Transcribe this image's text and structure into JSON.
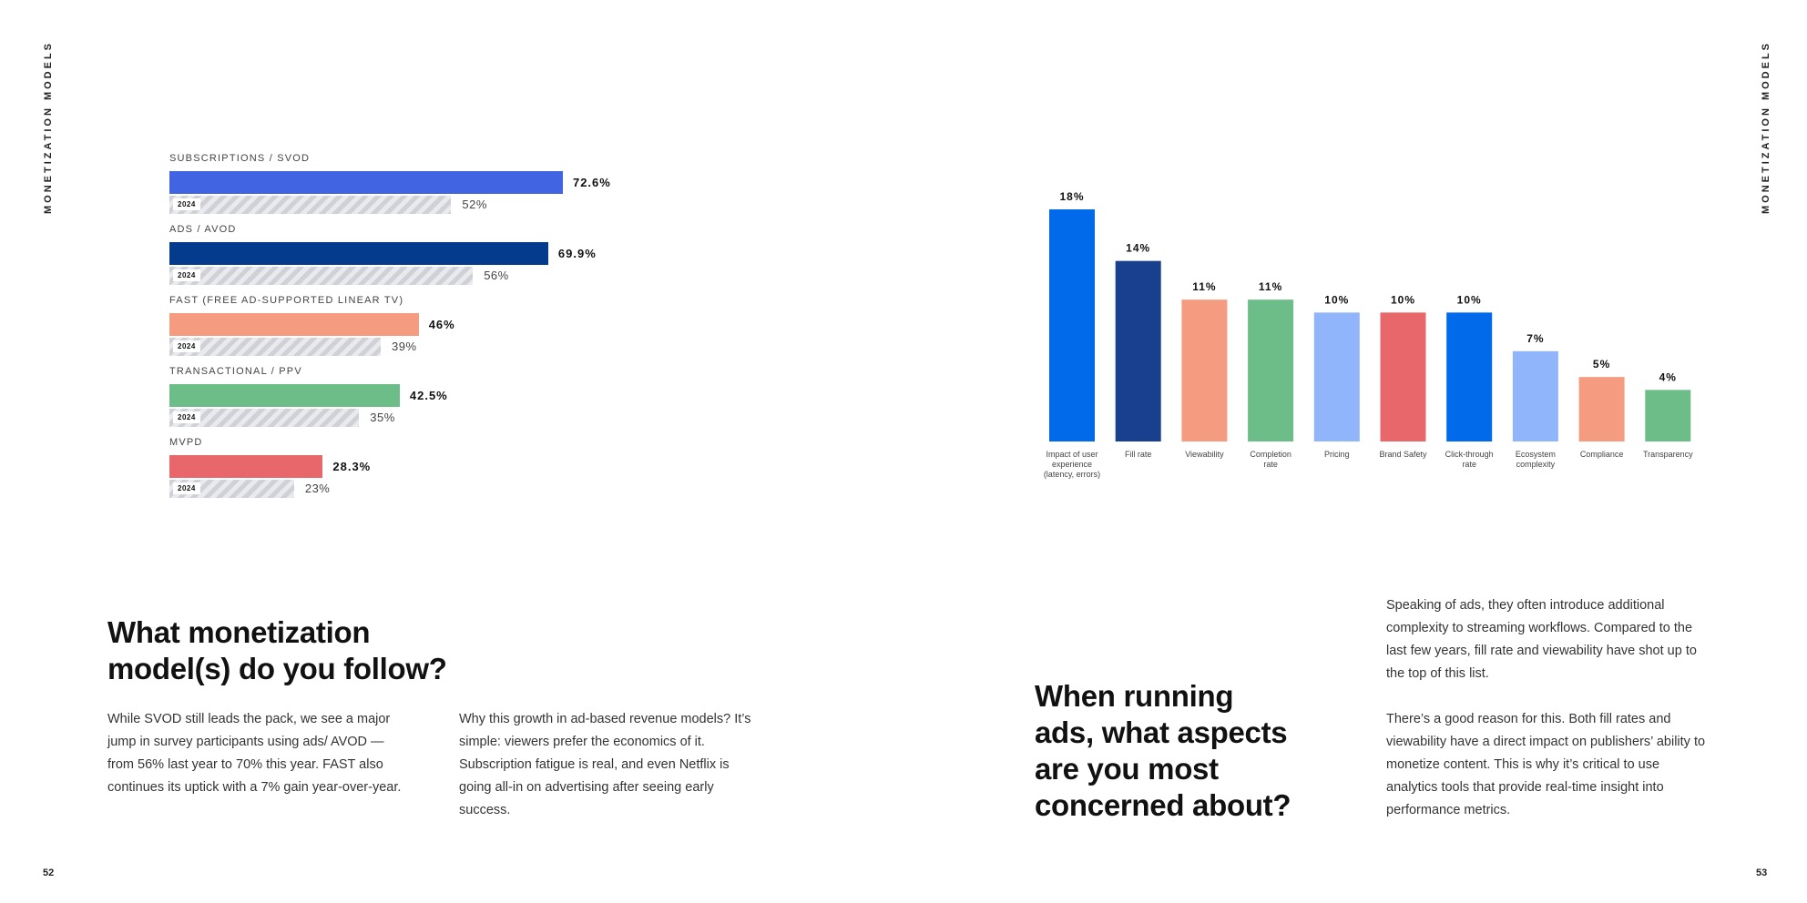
{
  "header": {
    "section_label": "MONETIZATION MODELS"
  },
  "footer": {
    "page_left": "52",
    "page_right": "53"
  },
  "left": {
    "heading_line1": "What monetization",
    "heading_line2": "model(s) do you follow?",
    "para1": "While SVOD still leads the pack, we see a major jump in survey participants using ads/ AVOD — from 56% last year to 70% this year. FAST also continues its uptick with a 7% gain year-over-year.",
    "para2": "Why this growth in ad-based revenue models? It’s simple: viewers prefer the economics of it. Subscription fatigue is real, and even Netflix is going all-in on advertising after seeing early success."
  },
  "right": {
    "heading_line1": "When running",
    "heading_line2": "ads, what aspects",
    "heading_line3": "are you most",
    "heading_line4": "concerned about?",
    "para1": "Speaking of ads, they often introduce additional complexity to streaming workflows. Compared to the last few years, fill rate and viewability have shot up to the top of this list.",
    "para2": "There’s a good reason for this. Both fill rates and viewability have a direct impact on publishers’ ability to monetize content. This is why it’s critical to use analytics tools that provide real-time insight into performance metrics."
  },
  "chart_data": [
    {
      "type": "bar",
      "orientation": "horizontal",
      "categories": [
        "SUBSCRIPTIONS / SVOD",
        "ADS / AVOD",
        "FAST (FREE AD-SUPPORTED LINEAR TV)",
        "TRANSACTIONAL / PPV",
        "MVPD"
      ],
      "series": [
        {
          "values": [
            72.6,
            69.9,
            46,
            42.5,
            28.3
          ],
          "labels": [
            "72.6%",
            "69.9%",
            "46%",
            "42.5%",
            "28.3%"
          ],
          "colors": [
            "#4064e2",
            "#043b8c",
            "#f59c80",
            "#6dbd88",
            "#e8676a"
          ]
        },
        {
          "name": "2024",
          "values": [
            52,
            56,
            39,
            35,
            23
          ],
          "labels": [
            "52%",
            "56%",
            "39%",
            "35%",
            "23%"
          ],
          "color": "#d6d7db"
        }
      ],
      "xlim": [
        0,
        100
      ]
    },
    {
      "type": "bar",
      "orientation": "vertical",
      "categories": [
        "Impact of user experience (latency, errors)",
        "Fill rate",
        "Viewability",
        "Completion rate",
        "Pricing",
        "Brand Safety",
        "Click-through rate",
        "Ecosystem complexity",
        "Compliance",
        "Transparency"
      ],
      "category_lines": [
        [
          "Impact of user",
          "experience",
          "(latency, errors)"
        ],
        [
          "Fill rate"
        ],
        [
          "Viewability"
        ],
        [
          "Completion",
          "rate"
        ],
        [
          "Pricing"
        ],
        [
          "Brand Safety"
        ],
        [
          "Click-through",
          "rate"
        ],
        [
          "Ecosystem",
          "complexity"
        ],
        [
          "Compliance"
        ],
        [
          "Transparency"
        ]
      ],
      "values": [
        18,
        14,
        11,
        11,
        10,
        10,
        10,
        7,
        5,
        4
      ],
      "labels": [
        "18%",
        "14%",
        "11%",
        "11%",
        "10%",
        "10%",
        "10%",
        "7%",
        "5%",
        "4%"
      ],
      "colors": [
        "#006aeb",
        "#18408e",
        "#f59c80",
        "#6dbd88",
        "#91b5fb",
        "#e8676a",
        "#006aeb",
        "#91b5fb",
        "#f59c80",
        "#6dbd88"
      ],
      "ylim": [
        0,
        18
      ]
    }
  ]
}
